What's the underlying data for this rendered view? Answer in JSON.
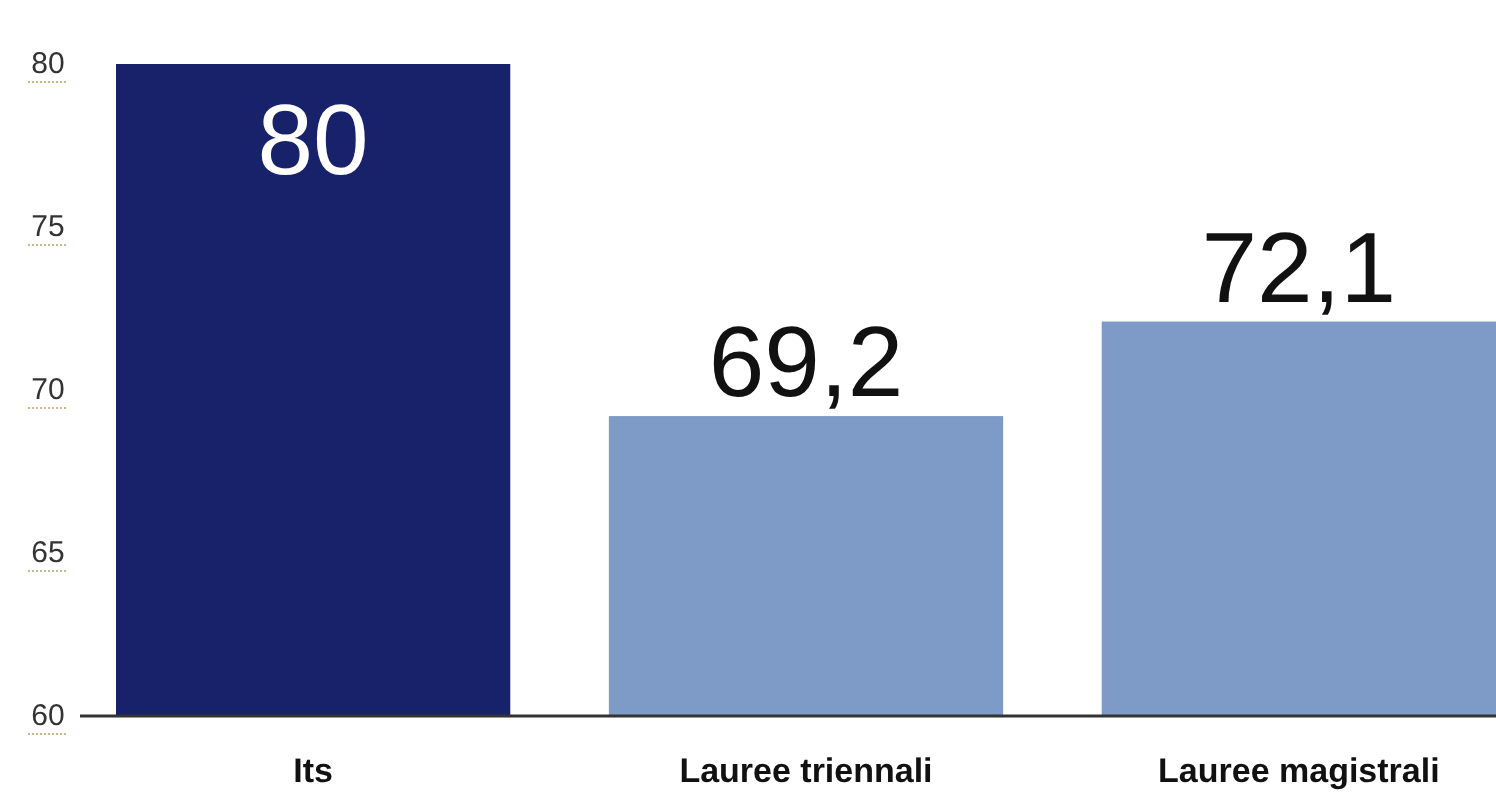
{
  "chart_data": {
    "type": "bar",
    "categories": [
      "Its",
      "Lauree triennali",
      "Lauree magistrali"
    ],
    "values": [
      80,
      69.2,
      72.1
    ],
    "colors": [
      "#17226a",
      "#7d9bc6",
      "#7d9bc6"
    ],
    "value_labels": [
      "80",
      "69,2",
      "72,1"
    ],
    "ylim": [
      60,
      80
    ],
    "yticks": [
      60,
      65,
      70,
      75,
      80
    ],
    "grid": false
  }
}
